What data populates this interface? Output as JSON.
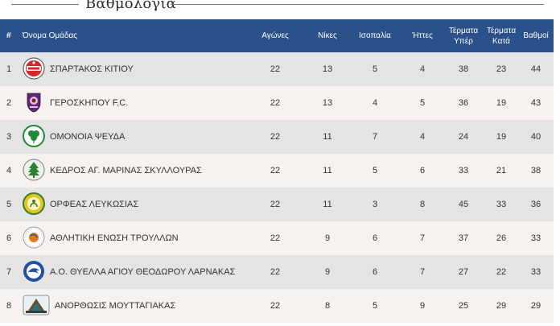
{
  "title": "Βαθμολογία",
  "headers": {
    "pos": "#",
    "team": "Όνομα Ομάδας",
    "played": "Αγώνες",
    "wins": "Νίκες",
    "draws": "Ισοπαλία",
    "losses": "Ήττες",
    "goals_for": "Τέρματα Υπέρ",
    "goals_against": "Τέρματα Κατά",
    "points": "Βαθμοί"
  },
  "rows": [
    {
      "pos": "1",
      "team": "ΣΠΑΡΤΑΚΟΣ ΚΙΤΙΟΥ",
      "played": "22",
      "wins": "13",
      "draws": "5",
      "losses": "4",
      "goals_for": "38",
      "goals_against": "23",
      "points": "44",
      "logo_icon": "spartakos-crest-icon",
      "logo_color": "#d62828"
    },
    {
      "pos": "2",
      "team": "ΓΕΡΟΣΚΗΠΟΥ F.C.",
      "played": "22",
      "wins": "13",
      "draws": "4",
      "losses": "5",
      "goals_for": "36",
      "goals_against": "19",
      "points": "43",
      "logo_icon": "geroskipou-crest-icon",
      "logo_color": "#6a1f7a"
    },
    {
      "pos": "3",
      "team": "ΟΜΟΝΟΙΑ ΨΕΥΔΑ",
      "played": "22",
      "wins": "11",
      "draws": "7",
      "losses": "4",
      "goals_for": "24",
      "goals_against": "19",
      "points": "40",
      "logo_icon": "clover-crest-icon",
      "logo_color": "#1f8a3a"
    },
    {
      "pos": "4",
      "team": "ΚΕΔΡΟΣ ΑΓ. ΜΑΡΙΝΑΣ ΣΚΥΛΛΟΥΡΑΣ",
      "played": "22",
      "wins": "11",
      "draws": "5",
      "losses": "6",
      "goals_for": "33",
      "goals_against": "21",
      "points": "38",
      "logo_icon": "cedar-tree-crest-icon",
      "logo_color": "#2e7d32"
    },
    {
      "pos": "5",
      "team": "ΟΡΦΕΑΣ ΛΕΥΚΩΣΙΑΣ",
      "played": "22",
      "wins": "11",
      "draws": "3",
      "losses": "8",
      "goals_for": "45",
      "goals_against": "33",
      "points": "36",
      "logo_icon": "orfeas-crest-icon",
      "logo_color": "#e6c51c"
    },
    {
      "pos": "6",
      "team": "ΑΘΛΗΤΙΚΗ ΕΝΩΣΗ ΤΡΟΥΛΛΩΝ",
      "played": "22",
      "wins": "9",
      "draws": "6",
      "losses": "7",
      "goals_for": "37",
      "goals_against": "26",
      "points": "33",
      "logo_icon": "troullon-crest-icon",
      "logo_color": "#e07a1f"
    },
    {
      "pos": "7",
      "team": "Α.Ο. ΘΥΕΛΛΑ ΑΓΙΟΥ ΘΕΟΔΩΡΟΥ ΛΑΡΝΑΚΑΣ",
      "played": "22",
      "wins": "9",
      "draws": "6",
      "losses": "7",
      "goals_for": "27",
      "goals_against": "22",
      "points": "33",
      "logo_icon": "thyella-crest-icon",
      "logo_color": "#1f4fa8"
    },
    {
      "pos": "8",
      "team": "ΑΝΟΡΘΩΣΙΣ ΜΟΥΤΤΑΓΙΑΚΑΣ",
      "played": "22",
      "wins": "8",
      "draws": "5",
      "losses": "9",
      "goals_for": "25",
      "goals_against": "29",
      "points": "29",
      "logo_icon": "anorthosis-crest-icon",
      "logo_color": "#2c6e8a"
    }
  ]
}
